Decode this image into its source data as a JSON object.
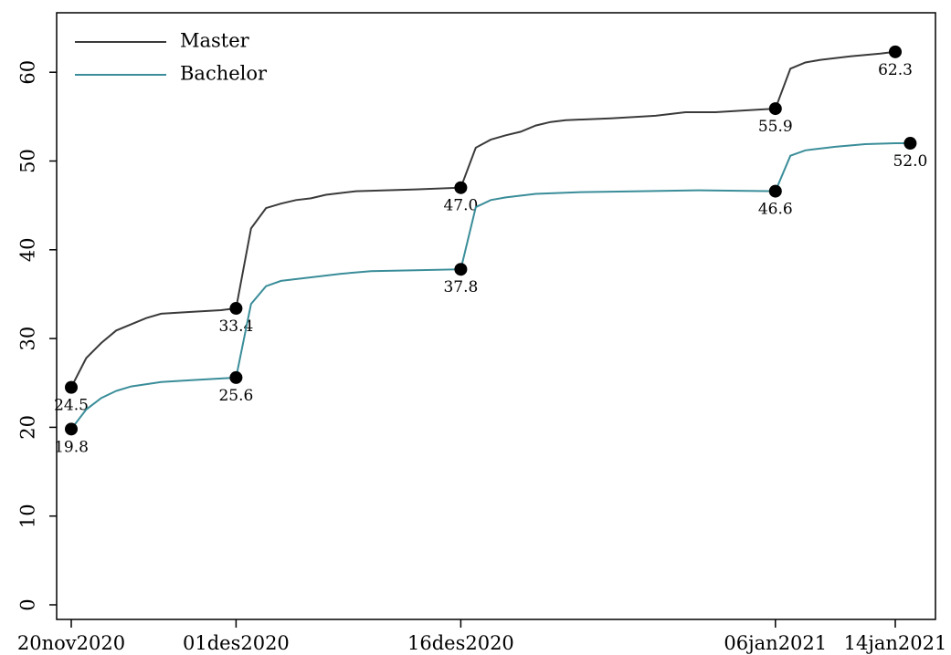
{
  "chart_data": {
    "type": "line",
    "title": "",
    "xlabel": "",
    "ylabel": "",
    "xlim": [
      "2020-11-20",
      "2021-01-14"
    ],
    "ylim": [
      0,
      65
    ],
    "y_ticks": [
      0,
      10,
      20,
      30,
      40,
      50,
      60
    ],
    "x_ticks": [
      {
        "date": "2020-11-20",
        "label": "20nov2020"
      },
      {
        "date": "2020-12-01",
        "label": "01des2020"
      },
      {
        "date": "2020-12-16",
        "label": "16des2020"
      },
      {
        "date": "2021-01-06",
        "label": "06jan2021"
      },
      {
        "date": "2021-01-14",
        "label": "14jan2021"
      }
    ],
    "grid": false,
    "legend_position": "top-left",
    "series": [
      {
        "name": "Master",
        "color": "#3a3a3a",
        "points": [
          [
            "2020-11-20",
            24.5
          ],
          [
            "2020-11-21",
            27.8
          ],
          [
            "2020-11-22",
            29.5
          ],
          [
            "2020-11-23",
            30.9
          ],
          [
            "2020-11-25",
            32.3
          ],
          [
            "2020-11-26",
            32.8
          ],
          [
            "2020-11-28",
            33.0
          ],
          [
            "2020-11-30",
            33.2
          ],
          [
            "2020-12-01",
            33.4
          ],
          [
            "2020-12-02",
            42.4
          ],
          [
            "2020-12-03",
            44.7
          ],
          [
            "2020-12-04",
            45.2
          ],
          [
            "2020-12-05",
            45.6
          ],
          [
            "2020-12-06",
            45.8
          ],
          [
            "2020-12-07",
            46.2
          ],
          [
            "2020-12-09",
            46.6
          ],
          [
            "2020-12-11",
            46.7
          ],
          [
            "2020-12-13",
            46.8
          ],
          [
            "2020-12-16",
            47.0
          ],
          [
            "2020-12-17",
            51.5
          ],
          [
            "2020-12-18",
            52.4
          ],
          [
            "2020-12-19",
            52.9
          ],
          [
            "2020-12-20",
            53.3
          ],
          [
            "2020-12-21",
            54.0
          ],
          [
            "2020-12-22",
            54.4
          ],
          [
            "2020-12-23",
            54.6
          ],
          [
            "2020-12-26",
            54.8
          ],
          [
            "2020-12-29",
            55.1
          ],
          [
            "2020-12-31",
            55.5
          ],
          [
            "2021-01-02",
            55.5
          ],
          [
            "2021-01-04",
            55.7
          ],
          [
            "2021-01-06",
            55.9
          ],
          [
            "2021-01-07",
            60.4
          ],
          [
            "2021-01-08",
            61.1
          ],
          [
            "2021-01-09",
            61.4
          ],
          [
            "2021-01-11",
            61.8
          ],
          [
            "2021-01-13",
            62.1
          ],
          [
            "2021-01-14",
            62.3
          ]
        ],
        "labeled_points": [
          {
            "date": "2020-11-20",
            "value": 24.5,
            "label": "24.5"
          },
          {
            "date": "2020-12-01",
            "value": 33.4,
            "label": "33.4"
          },
          {
            "date": "2020-12-16",
            "value": 47.0,
            "label": "47.0"
          },
          {
            "date": "2021-01-06",
            "value": 55.9,
            "label": "55.9"
          },
          {
            "date": "2021-01-14",
            "value": 62.3,
            "label": "62.3"
          }
        ]
      },
      {
        "name": "Bachelor",
        "color": "#3a8d99",
        "points": [
          [
            "2020-11-20",
            19.8
          ],
          [
            "2020-11-21",
            22.0
          ],
          [
            "2020-11-22",
            23.3
          ],
          [
            "2020-11-23",
            24.1
          ],
          [
            "2020-11-24",
            24.6
          ],
          [
            "2020-11-26",
            25.1
          ],
          [
            "2020-11-28",
            25.3
          ],
          [
            "2020-11-30",
            25.5
          ],
          [
            "2020-12-01",
            25.6
          ],
          [
            "2020-12-02",
            33.9
          ],
          [
            "2020-12-03",
            35.9
          ],
          [
            "2020-12-04",
            36.5
          ],
          [
            "2020-12-06",
            36.9
          ],
          [
            "2020-12-08",
            37.3
          ],
          [
            "2020-12-10",
            37.6
          ],
          [
            "2020-12-13",
            37.7
          ],
          [
            "2020-12-16",
            37.8
          ],
          [
            "2020-12-17",
            44.8
          ],
          [
            "2020-12-18",
            45.6
          ],
          [
            "2020-12-19",
            45.9
          ],
          [
            "2020-12-21",
            46.3
          ],
          [
            "2020-12-24",
            46.5
          ],
          [
            "2020-12-28",
            46.6
          ],
          [
            "2021-01-01",
            46.7
          ],
          [
            "2021-01-06",
            46.6
          ],
          [
            "2021-01-07",
            50.6
          ],
          [
            "2021-01-08",
            51.2
          ],
          [
            "2021-01-10",
            51.6
          ],
          [
            "2021-01-12",
            51.9
          ],
          [
            "2021-01-14",
            52.0
          ],
          [
            "2021-01-15",
            52.0
          ]
        ],
        "labeled_points": [
          {
            "date": "2020-11-20",
            "value": 19.8,
            "label": "19.8"
          },
          {
            "date": "2020-12-01",
            "value": 25.6,
            "label": "25.6"
          },
          {
            "date": "2020-12-16",
            "value": 37.8,
            "label": "37.8"
          },
          {
            "date": "2021-01-06",
            "value": 46.6,
            "label": "46.6"
          },
          {
            "date": "2021-01-15",
            "value": 52.0,
            "label": "52.0"
          }
        ]
      }
    ]
  }
}
